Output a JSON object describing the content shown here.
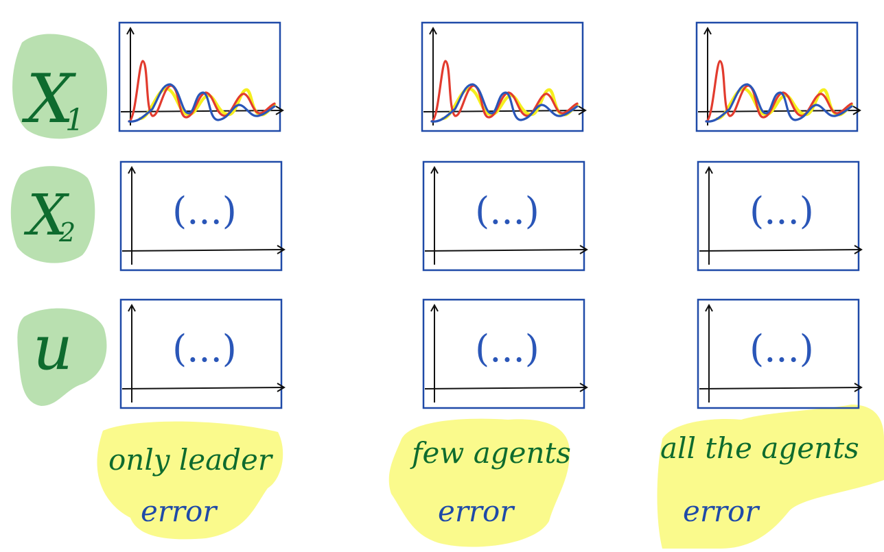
{
  "rows": [
    {
      "id": "x1",
      "label": "X1",
      "text": "X",
      "sub": "1"
    },
    {
      "id": "x2",
      "label": "X2",
      "text": "X",
      "sub": "2"
    },
    {
      "id": "u",
      "label": "u",
      "text": "u",
      "sub": ""
    }
  ],
  "columns": [
    {
      "id": "leader",
      "caption_line1": "only leader",
      "caption_line2": "error"
    },
    {
      "id": "few",
      "caption_line1": "few agents",
      "caption_line2": "error"
    },
    {
      "id": "all",
      "caption_line1": "all the agents",
      "caption_line2": "error"
    }
  ],
  "placeholder_text": "(...)",
  "colors": {
    "frame": "#1f4aa8",
    "axis": "#111111",
    "label_blob": "#b9e0b0",
    "caption_blob": "#fafa8c",
    "caption_text_top": "#0e6b2e",
    "caption_text_bottom": "#1f4aa8",
    "label_text": "#0e6b2e",
    "series_red": "#e23b2e",
    "series_yellow": "#f5ee1e",
    "series_blue": "#2a56b8"
  },
  "icons": [
    "axis-arrow-icon"
  ]
}
